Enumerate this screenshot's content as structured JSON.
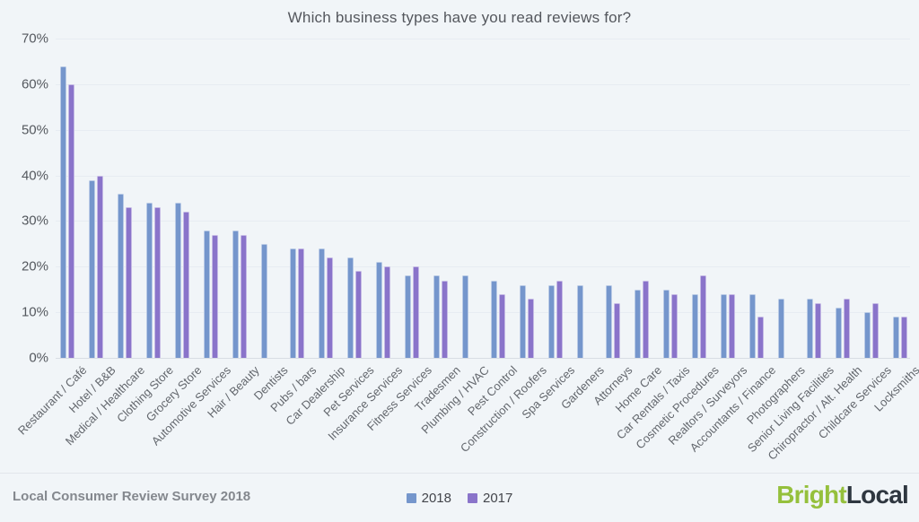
{
  "title": "Which business types have you read reviews for?",
  "footer": {
    "source_label": "Local Consumer Review Survey 2018"
  },
  "brand": {
    "bright": "Bright",
    "local": "Local"
  },
  "colors": {
    "background": "#f1f5f8",
    "bar_2018": "#7596cc",
    "bar_2017": "#8a74ca",
    "gridline": "#e7ecf2",
    "axis_line": "#d8dde4",
    "brand_green": "#95c03c",
    "brand_navy": "#2f3740"
  },
  "chart_data": {
    "type": "bar",
    "title": "Which business types have you read reviews for?",
    "xlabel": "",
    "ylabel": "",
    "ylim": [
      0,
      70
    ],
    "ytick_step": 10,
    "ytick_format": "percent",
    "grid": true,
    "legend_position": "bottom",
    "categories": [
      "Restaurant / Café",
      "Hotel / B&B",
      "Medical / Healthcare",
      "Clothing Store",
      "Grocery Store",
      "Automotive Services",
      "Hair / Beauty",
      "Dentists",
      "Pubs / bars",
      "Car Dealership",
      "Pet Services",
      "Insurance Services",
      "Fitness Services",
      "Tradesmen",
      "Plumbing / HVAC",
      "Pest Control",
      "Construction / Roofers",
      "Spa Services",
      "Gardeners",
      "Attorneys",
      "Home Care",
      "Car Rentals / Taxis",
      "Cosmetic Procedures",
      "Realtors / Surveyors",
      "Accountants / Finance",
      "Photographers",
      "Senior Living Facilities",
      "Chiropractor / Alt. Health",
      "Childcare Services",
      "Locksmiths"
    ],
    "series": [
      {
        "name": "2018",
        "color": "#7596cc",
        "values": [
          64,
          39,
          36,
          34,
          34,
          28,
          28,
          25,
          24,
          24,
          22,
          21,
          18,
          18,
          18,
          17,
          16,
          16,
          16,
          16,
          15,
          15,
          14,
          14,
          14,
          13,
          13,
          11,
          10,
          9
        ]
      },
      {
        "name": "2017",
        "color": "#8a74ca",
        "values": [
          60,
          40,
          33,
          33,
          32,
          27,
          27,
          null,
          24,
          22,
          19,
          20,
          20,
          17,
          null,
          14,
          13,
          17,
          null,
          12,
          17,
          14,
          18,
          14,
          9,
          null,
          12,
          13,
          12,
          9
        ]
      }
    ]
  }
}
